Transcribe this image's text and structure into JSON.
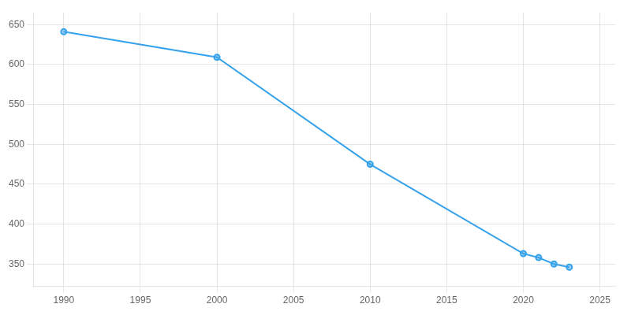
{
  "chart_data": {
    "type": "line",
    "x": [
      1990,
      2000,
      2010,
      2020,
      2021,
      2022,
      2023
    ],
    "values": [
      641,
      609,
      475,
      363,
      358,
      350,
      346
    ],
    "xlim": [
      1988,
      2026
    ],
    "ylim": [
      322,
      665
    ],
    "xticks": [
      1990,
      1995,
      2000,
      2005,
      2010,
      2015,
      2020,
      2025
    ],
    "yticks": [
      350,
      400,
      450,
      500,
      550,
      600,
      650
    ],
    "grid": true,
    "marker": "circle"
  }
}
